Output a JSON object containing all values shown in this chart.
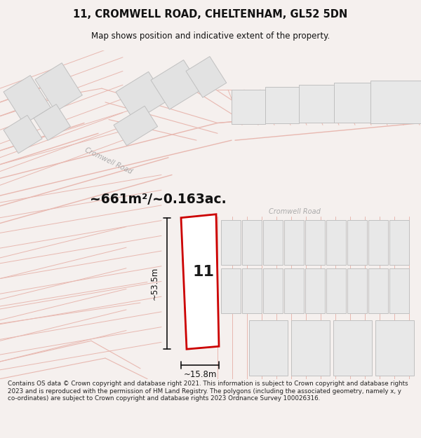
{
  "title_line1": "11, CROMWELL ROAD, CHELTENHAM, GL52 5DN",
  "title_line2": "Map shows position and indicative extent of the property.",
  "area_text": "~661m²/~0.163ac.",
  "property_number": "11",
  "dim_height": "~53.5m",
  "dim_width": "~15.8m",
  "road_label_upper": "Cromwell Road",
  "road_label_lower": "Cromwell Road",
  "footer_text": "Contains OS data © Crown copyright and database right 2021. This information is subject to Crown copyright and database rights 2023 and is reproduced with the permission of HM Land Registry. The polygons (including the associated geometry, namely x, y co-ordinates) are subject to Crown copyright and database rights 2023 Ordnance Survey 100026316.",
  "bg_color": "#f5f0ee",
  "map_bg_color": "#f5f2f0",
  "line_color": "#e8b8b0",
  "gray_fill": "#e8e8e8",
  "property_fill": "#ffffff",
  "property_edge": "#cc0000",
  "dim_line_color": "#111111",
  "text_color": "#111111",
  "road_text_color": "#aaaaaa",
  "footer_color": "#222222"
}
